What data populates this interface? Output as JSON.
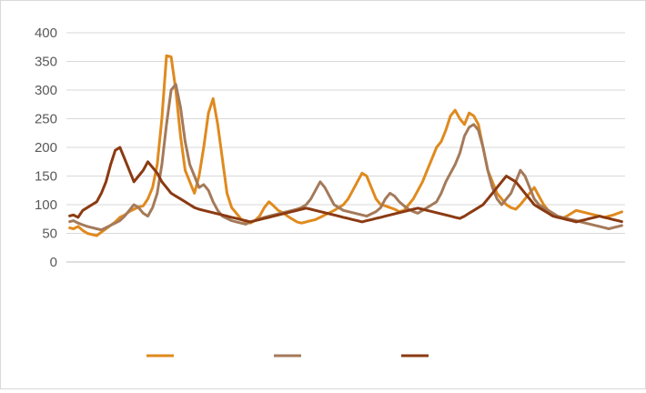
{
  "chart_data": {
    "type": "line",
    "title": "",
    "xlabel": "",
    "ylabel": "",
    "ylim": [
      0,
      400
    ],
    "yticks": [
      0,
      50,
      100,
      150,
      200,
      250,
      300,
      350,
      400
    ],
    "grid": true,
    "legend_position": "bottom",
    "x_count": 120,
    "series": [
      {
        "color": "#e08a1e",
        "values": [
          60,
          58,
          62,
          55,
          50,
          48,
          46,
          52,
          58,
          64,
          70,
          78,
          82,
          88,
          92,
          96,
          98,
          110,
          130,
          170,
          250,
          360,
          358,
          300,
          220,
          160,
          140,
          120,
          150,
          200,
          260,
          285,
          240,
          180,
          120,
          95,
          85,
          75,
          70,
          68,
          72,
          80,
          95,
          105,
          98,
          90,
          86,
          80,
          75,
          70,
          68,
          70,
          72,
          74,
          78,
          82,
          86,
          90,
          95,
          100,
          110,
          125,
          140,
          155,
          150,
          130,
          110,
          100,
          98,
          95,
          92,
          88,
          90,
          100,
          110,
          125,
          140,
          160,
          180,
          200,
          210,
          230,
          255,
          265,
          250,
          240,
          260,
          255,
          240,
          200,
          160,
          140,
          120,
          110,
          100,
          95,
          92,
          100,
          110,
          120,
          130,
          115,
          100,
          90,
          85,
          80,
          76,
          80,
          85,
          90,
          88,
          86,
          84,
          82,
          80,
          78,
          80,
          82,
          85,
          88
        ]
      },
      {
        "color": "#a47a5a",
        "values": [
          70,
          72,
          68,
          65,
          62,
          60,
          58,
          56,
          60,
          64,
          68,
          72,
          80,
          90,
          100,
          95,
          85,
          80,
          95,
          120,
          170,
          240,
          300,
          310,
          270,
          210,
          170,
          150,
          130,
          135,
          125,
          105,
          90,
          80,
          76,
          72,
          70,
          68,
          66,
          70,
          72,
          75,
          78,
          80,
          82,
          84,
          86,
          88,
          90,
          92,
          95,
          100,
          110,
          125,
          140,
          130,
          115,
          100,
          95,
          90,
          88,
          86,
          84,
          82,
          80,
          84,
          88,
          95,
          110,
          120,
          115,
          105,
          98,
          92,
          88,
          85,
          90,
          95,
          100,
          105,
          120,
          140,
          155,
          170,
          190,
          220,
          235,
          240,
          230,
          200,
          160,
          130,
          110,
          100,
          110,
          120,
          140,
          160,
          150,
          130,
          110,
          100,
          95,
          90,
          85,
          80,
          78,
          76,
          74,
          72,
          70,
          68,
          66,
          64,
          62,
          60,
          58,
          60,
          62,
          64
        ]
      },
      {
        "color": "#8b3a12",
        "values": [
          80,
          82,
          78,
          90,
          95,
          100,
          105,
          120,
          140,
          170,
          195,
          200,
          180,
          160,
          140,
          150,
          160,
          175,
          165,
          155,
          140,
          130,
          120,
          115,
          110,
          105,
          100,
          95,
          92,
          90,
          88,
          86,
          84,
          82,
          80,
          78,
          76,
          74,
          72,
          70,
          72,
          74,
          76,
          78,
          80,
          82,
          84,
          86,
          88,
          90,
          92,
          94,
          92,
          90,
          88,
          86,
          84,
          82,
          80,
          78,
          76,
          74,
          72,
          70,
          72,
          74,
          76,
          78,
          80,
          82,
          84,
          86,
          88,
          90,
          92,
          94,
          92,
          90,
          88,
          86,
          84,
          82,
          80,
          78,
          76,
          80,
          85,
          90,
          95,
          100,
          110,
          120,
          130,
          140,
          150,
          145,
          140,
          130,
          120,
          110,
          100,
          95,
          90,
          85,
          80,
          78,
          76,
          74,
          72,
          70,
          72,
          74,
          76,
          78,
          80,
          78,
          76,
          74,
          72,
          70
        ]
      }
    ]
  }
}
